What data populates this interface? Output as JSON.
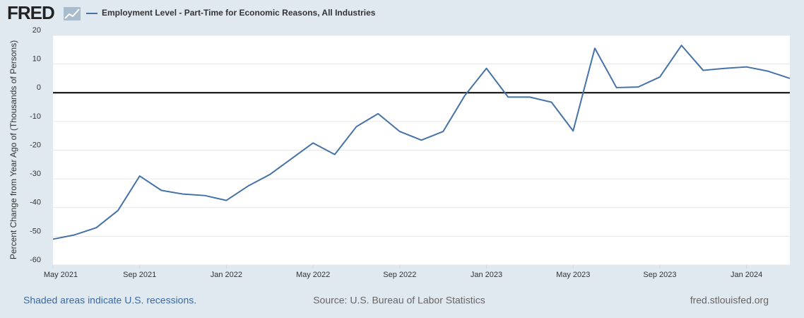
{
  "brand": "FRED",
  "chart_data": {
    "type": "line",
    "title": "Employment Level - Part-Time for Economic Reasons, All Industries",
    "ylabel": "Percent Change from Year Ago of (Thousands of Persons)",
    "x": [
      "2021-05",
      "2021-06",
      "2021-07",
      "2021-08",
      "2021-09",
      "2021-10",
      "2021-11",
      "2021-12",
      "2022-01",
      "2022-02",
      "2022-03",
      "2022-04",
      "2022-05",
      "2022-06",
      "2022-07",
      "2022-08",
      "2022-09",
      "2022-10",
      "2022-11",
      "2022-12",
      "2023-01",
      "2023-02",
      "2023-03",
      "2023-04",
      "2023-05",
      "2023-06",
      "2023-07",
      "2023-08",
      "2023-09",
      "2023-10",
      "2023-11",
      "2023-12",
      "2024-01",
      "2024-02",
      "2024-03"
    ],
    "series": [
      {
        "name": "Employment Level - Part-Time for Economic Reasons, All Industries",
        "color": "#4572a7",
        "values": [
          -51,
          -49.5,
          -47,
          -41,
          -29,
          -34,
          -35.3,
          -35.8,
          -37.5,
          -32.5,
          -28.5,
          -23,
          -17.5,
          -21.5,
          -11.8,
          -7.3,
          -13.5,
          -16.5,
          -13.5,
          -1,
          8.5,
          -1.5,
          -1.5,
          -3.3,
          -13.3,
          15.5,
          1.8,
          2,
          5.5,
          16.5,
          7.8,
          8.5,
          9,
          7.5,
          5
        ]
      }
    ],
    "xlim": [
      "2021-05",
      "2024-03"
    ],
    "xticks": [
      {
        "value": "2021-05",
        "label": "May 2021"
      },
      {
        "value": "2021-09",
        "label": "Sep 2021"
      },
      {
        "value": "2022-01",
        "label": "Jan 2022"
      },
      {
        "value": "2022-05",
        "label": "May 2022"
      },
      {
        "value": "2022-09",
        "label": "Sep 2022"
      },
      {
        "value": "2023-01",
        "label": "Jan 2023"
      },
      {
        "value": "2023-05",
        "label": "May 2023"
      },
      {
        "value": "2023-09",
        "label": "Sep 2023"
      },
      {
        "value": "2024-01",
        "label": "Jan 2024"
      }
    ],
    "ylim": [
      -60,
      20
    ],
    "yticks": [
      -60,
      -50,
      -40,
      -30,
      -20,
      -10,
      0,
      10,
      20
    ],
    "grid": true
  },
  "footer": {
    "note": "Shaded areas indicate U.S. recessions.",
    "source": "Source: U.S. Bureau of Labor Statistics",
    "site": "fred.stlouisfed.org"
  }
}
